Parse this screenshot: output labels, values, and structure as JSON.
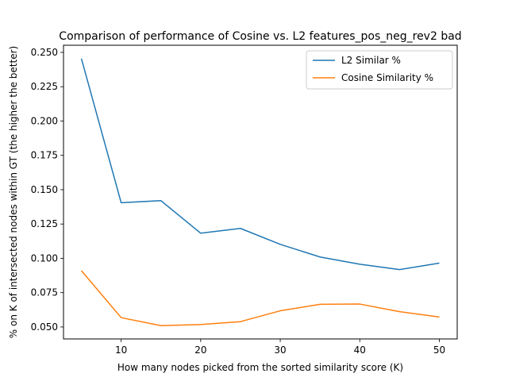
{
  "chart_data": {
    "type": "line",
    "title": "Comparison of performance of Cosine vs. L2 features_pos_neg_rev2 bad",
    "xlabel": "How many nodes picked from the sorted similarity score (K)",
    "ylabel": "% on K of intersected nodes within GT (the higher the better)",
    "x": [
      5,
      10,
      15,
      20,
      25,
      30,
      35,
      40,
      45,
      50
    ],
    "series": [
      {
        "name": "L2 Similar %",
        "color": "#1f77b4",
        "values": [
          0.2455,
          0.1405,
          0.142,
          0.1183,
          0.1218,
          0.1102,
          0.101,
          0.0957,
          0.0918,
          0.0965
        ]
      },
      {
        "name": "Cosine Similarity %",
        "color": "#ff7f0e",
        "values": [
          0.091,
          0.0568,
          0.051,
          0.0518,
          0.0539,
          0.0618,
          0.0665,
          0.0667,
          0.0612,
          0.0573
        ]
      }
    ],
    "xlim": [
      2.75,
      52.25
    ],
    "ylim": [
      0.0413,
      0.2552
    ],
    "xticks": [
      10,
      20,
      30,
      40,
      50
    ],
    "yticks": [
      "0.050",
      "0.075",
      "0.100",
      "0.125",
      "0.150",
      "0.175",
      "0.200",
      "0.225",
      "0.250"
    ],
    "grid": false,
    "legend_position": "upper-right"
  }
}
